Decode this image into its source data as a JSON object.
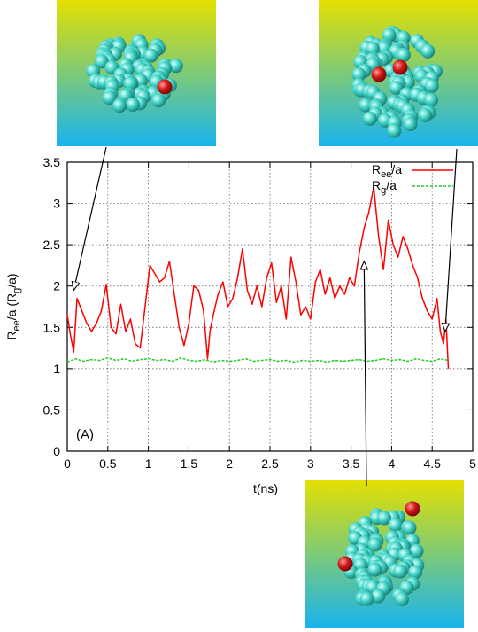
{
  "chart_data": {
    "type": "line",
    "panel_label": "(A)",
    "xlabel": "t(ns)",
    "ylabel": {
      "main": "R",
      "sub1": "ee",
      "mid": "/a (R",
      "sub2": "g",
      "tail": "/a)"
    },
    "xlim": [
      0,
      5
    ],
    "ylim": [
      0,
      3.5
    ],
    "xticks": [
      "0",
      "0.5",
      "1",
      "1.5",
      "2",
      "2.5",
      "3",
      "3.5",
      "4",
      "4.5",
      "5"
    ],
    "yticks": [
      "0",
      "0.5",
      "1",
      "1.5",
      "2",
      "2.5",
      "3",
      "3.5"
    ],
    "grid": true,
    "legend_position": "top-right",
    "series": [
      {
        "name": {
          "main": "R",
          "sub": "ee",
          "tail": "/a"
        },
        "color": "#ff0000",
        "dash": "solid",
        "points": [
          [
            0.0,
            1.65
          ],
          [
            0.04,
            1.4
          ],
          [
            0.08,
            1.2
          ],
          [
            0.12,
            1.85
          ],
          [
            0.18,
            1.7
          ],
          [
            0.24,
            1.55
          ],
          [
            0.3,
            1.45
          ],
          [
            0.36,
            1.55
          ],
          [
            0.42,
            1.7
          ],
          [
            0.48,
            2.02
          ],
          [
            0.54,
            1.5
          ],
          [
            0.6,
            1.42
          ],
          [
            0.66,
            1.78
          ],
          [
            0.72,
            1.45
          ],
          [
            0.78,
            1.6
          ],
          [
            0.84,
            1.3
          ],
          [
            0.9,
            1.25
          ],
          [
            0.96,
            1.75
          ],
          [
            1.02,
            2.25
          ],
          [
            1.08,
            2.15
          ],
          [
            1.14,
            2.05
          ],
          [
            1.2,
            2.1
          ],
          [
            1.26,
            2.3
          ],
          [
            1.32,
            1.9
          ],
          [
            1.38,
            1.5
          ],
          [
            1.44,
            1.28
          ],
          [
            1.5,
            1.55
          ],
          [
            1.56,
            2.0
          ],
          [
            1.62,
            1.95
          ],
          [
            1.68,
            1.7
          ],
          [
            1.73,
            1.12
          ],
          [
            1.76,
            1.45
          ],
          [
            1.8,
            1.65
          ],
          [
            1.86,
            1.9
          ],
          [
            1.92,
            2.05
          ],
          [
            1.98,
            1.75
          ],
          [
            2.04,
            1.85
          ],
          [
            2.1,
            2.1
          ],
          [
            2.16,
            2.45
          ],
          [
            2.22,
            1.95
          ],
          [
            2.28,
            1.78
          ],
          [
            2.34,
            2.0
          ],
          [
            2.4,
            1.75
          ],
          [
            2.46,
            2.1
          ],
          [
            2.52,
            2.28
          ],
          [
            2.58,
            1.8
          ],
          [
            2.64,
            2.0
          ],
          [
            2.7,
            1.6
          ],
          [
            2.76,
            2.35
          ],
          [
            2.82,
            2.05
          ],
          [
            2.88,
            1.65
          ],
          [
            2.94,
            1.75
          ],
          [
            3.0,
            1.6
          ],
          [
            3.06,
            2.05
          ],
          [
            3.12,
            2.2
          ],
          [
            3.18,
            1.9
          ],
          [
            3.24,
            2.1
          ],
          [
            3.3,
            1.85
          ],
          [
            3.36,
            2.0
          ],
          [
            3.42,
            1.9
          ],
          [
            3.48,
            2.1
          ],
          [
            3.54,
            2.0
          ],
          [
            3.6,
            2.4
          ],
          [
            3.66,
            2.7
          ],
          [
            3.72,
            2.9
          ],
          [
            3.78,
            3.2
          ],
          [
            3.84,
            2.6
          ],
          [
            3.9,
            2.2
          ],
          [
            3.96,
            2.8
          ],
          [
            4.02,
            2.5
          ],
          [
            4.08,
            2.35
          ],
          [
            4.14,
            2.6
          ],
          [
            4.2,
            2.45
          ],
          [
            4.26,
            2.25
          ],
          [
            4.32,
            2.1
          ],
          [
            4.38,
            1.85
          ],
          [
            4.44,
            1.7
          ],
          [
            4.5,
            1.6
          ],
          [
            4.56,
            1.85
          ],
          [
            4.6,
            1.45
          ],
          [
            4.64,
            1.3
          ],
          [
            4.67,
            1.6
          ],
          [
            4.7,
            1.0
          ]
        ]
      },
      {
        "name": {
          "main": "R",
          "sub": "g",
          "tail": "/a"
        },
        "color": "#22cc22",
        "dash": "dashed",
        "points": [
          [
            0.0,
            1.08
          ],
          [
            0.1,
            1.12
          ],
          [
            0.2,
            1.09
          ],
          [
            0.3,
            1.11
          ],
          [
            0.4,
            1.1
          ],
          [
            0.5,
            1.13
          ],
          [
            0.6,
            1.1
          ],
          [
            0.7,
            1.12
          ],
          [
            0.8,
            1.09
          ],
          [
            0.9,
            1.11
          ],
          [
            1.0,
            1.12
          ],
          [
            1.1,
            1.1
          ],
          [
            1.2,
            1.11
          ],
          [
            1.3,
            1.09
          ],
          [
            1.4,
            1.13
          ],
          [
            1.5,
            1.1
          ],
          [
            1.6,
            1.09
          ],
          [
            1.7,
            1.11
          ],
          [
            1.8,
            1.08
          ],
          [
            1.9,
            1.1
          ],
          [
            2.0,
            1.09
          ],
          [
            2.1,
            1.1
          ],
          [
            2.2,
            1.12
          ],
          [
            2.3,
            1.09
          ],
          [
            2.4,
            1.1
          ],
          [
            2.5,
            1.11
          ],
          [
            2.6,
            1.09
          ],
          [
            2.7,
            1.1
          ],
          [
            2.8,
            1.08
          ],
          [
            2.9,
            1.1
          ],
          [
            3.0,
            1.09
          ],
          [
            3.1,
            1.1
          ],
          [
            3.2,
            1.08
          ],
          [
            3.3,
            1.1
          ],
          [
            3.4,
            1.09
          ],
          [
            3.5,
            1.1
          ],
          [
            3.6,
            1.11
          ],
          [
            3.7,
            1.09
          ],
          [
            3.8,
            1.1
          ],
          [
            3.9,
            1.12
          ],
          [
            4.0,
            1.1
          ],
          [
            4.1,
            1.11
          ],
          [
            4.2,
            1.09
          ],
          [
            4.3,
            1.12
          ],
          [
            4.4,
            1.1
          ],
          [
            4.5,
            1.09
          ],
          [
            4.6,
            1.12
          ],
          [
            4.7,
            1.1
          ]
        ]
      }
    ],
    "annotations": [
      {
        "target": [
          0.08,
          1.95
        ],
        "snapshot": "top-left"
      },
      {
        "target": [
          3.66,
          2.3
        ],
        "snapshot": "bottom"
      },
      {
        "target": [
          4.66,
          1.45
        ],
        "snapshot": "top-right"
      }
    ]
  },
  "snapshots": {
    "bead_color": "#44d4c8",
    "end_bead_color": "#d01818",
    "background_top": "#e4e000",
    "background_bottom": "#18b4ee"
  }
}
